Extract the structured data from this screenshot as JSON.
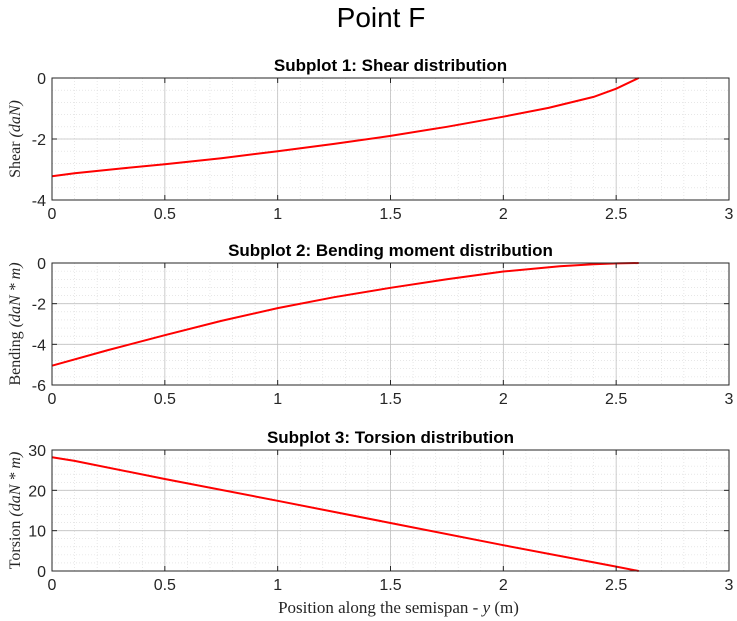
{
  "figure": {
    "title": "Point F"
  },
  "chart_data": [
    {
      "type": "line",
      "title": "Subplot 1: Shear distribution",
      "ylabel_text": "Shear",
      "ylabel_math": "(daN)",
      "xlabel": "",
      "xlim": [
        0,
        3
      ],
      "ylim": [
        -4,
        0
      ],
      "xticks": [
        0,
        0.5,
        1,
        1.5,
        2,
        2.5,
        3
      ],
      "xtick_labels": [
        "0",
        "0.5",
        "1",
        "1.5",
        "2",
        "2.5",
        "3"
      ],
      "yticks": [
        -4,
        -2,
        0
      ],
      "ytick_labels": [
        "-4",
        "-2",
        "0"
      ],
      "grid": true,
      "minor_grid": true,
      "color": "#ff0000",
      "series": [
        {
          "x": [
            0,
            0.1,
            0.3,
            0.5,
            0.75,
            1.0,
            1.25,
            1.5,
            1.75,
            2.0,
            2.2,
            2.4,
            2.5,
            2.6
          ],
          "y": [
            -3.22,
            -3.12,
            -2.97,
            -2.83,
            -2.63,
            -2.4,
            -2.16,
            -1.9,
            -1.6,
            -1.27,
            -0.98,
            -0.62,
            -0.35,
            0
          ]
        }
      ]
    },
    {
      "type": "line",
      "title": "Subplot 2: Bending moment distribution",
      "ylabel_text": "Bending",
      "ylabel_math": "(daN * m)",
      "xlabel": "",
      "xlim": [
        0,
        3
      ],
      "ylim": [
        -6,
        0
      ],
      "xticks": [
        0,
        0.5,
        1,
        1.5,
        2,
        2.5,
        3
      ],
      "xtick_labels": [
        "0",
        "0.5",
        "1",
        "1.5",
        "2",
        "2.5",
        "3"
      ],
      "yticks": [
        -6,
        -4,
        -2,
        0
      ],
      "ytick_labels": [
        "-6",
        "-4",
        "-2",
        "0"
      ],
      "grid": true,
      "minor_grid": true,
      "color": "#ff0000",
      "series": [
        {
          "x": [
            0,
            0.25,
            0.5,
            0.75,
            1.0,
            1.25,
            1.5,
            1.75,
            2.0,
            2.25,
            2.4,
            2.5,
            2.6
          ],
          "y": [
            -5.05,
            -4.28,
            -3.55,
            -2.85,
            -2.22,
            -1.68,
            -1.22,
            -0.8,
            -0.42,
            -0.16,
            -0.06,
            -0.02,
            0
          ]
        }
      ]
    },
    {
      "type": "line",
      "title": "Subplot 3: Torsion distribution",
      "ylabel_text": "Torsion",
      "ylabel_math": "(daN * m)",
      "xlabel_text": "Position along the semispan - ",
      "xlabel_math": "y",
      "xlabel_unit": " (m)",
      "xlim": [
        0,
        3
      ],
      "ylim": [
        0,
        30
      ],
      "xticks": [
        0,
        0.5,
        1,
        1.5,
        2,
        2.5,
        3
      ],
      "xtick_labels": [
        "0",
        "0.5",
        "1",
        "1.5",
        "2",
        "2.5",
        "3"
      ],
      "yticks": [
        0,
        10,
        20,
        30
      ],
      "ytick_labels": [
        "0",
        "10",
        "20",
        "30"
      ],
      "grid": true,
      "minor_grid": true,
      "color": "#ff0000",
      "series": [
        {
          "x": [
            0,
            0.1,
            0.5,
            1.0,
            1.5,
            2.0,
            2.5,
            2.6
          ],
          "y": [
            28.2,
            27.3,
            22.8,
            17.4,
            11.9,
            6.4,
            1.1,
            0
          ]
        }
      ]
    }
  ]
}
